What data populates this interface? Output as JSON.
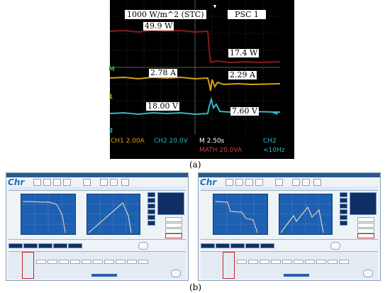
{
  "scope": {
    "irradiance_box": "1000 W/m^2 (STC)",
    "psc_box": "PSC 1",
    "power_before": "49.9 W",
    "power_after": "17.4 W",
    "current_before": "2.78 A",
    "current_after": "2.29 A",
    "voltage_before": "18.00 V",
    "voltage_after": "7.60 V",
    "ch_markers": [
      "M",
      "1",
      "2"
    ],
    "status": {
      "ch1": "CH1  2.00A",
      "ch2": "CH2  20.0V",
      "timebase": "M 2.50s",
      "math": "MATH 20.0VA",
      "ch2_right": "CH2",
      "freq": "<10Hz"
    },
    "colors": {
      "power": "#8b1a1a",
      "current": "#d4a017",
      "voltage": "#33b5c4"
    }
  },
  "captions": {
    "a": "(a)",
    "b": "(b)"
  }
}
